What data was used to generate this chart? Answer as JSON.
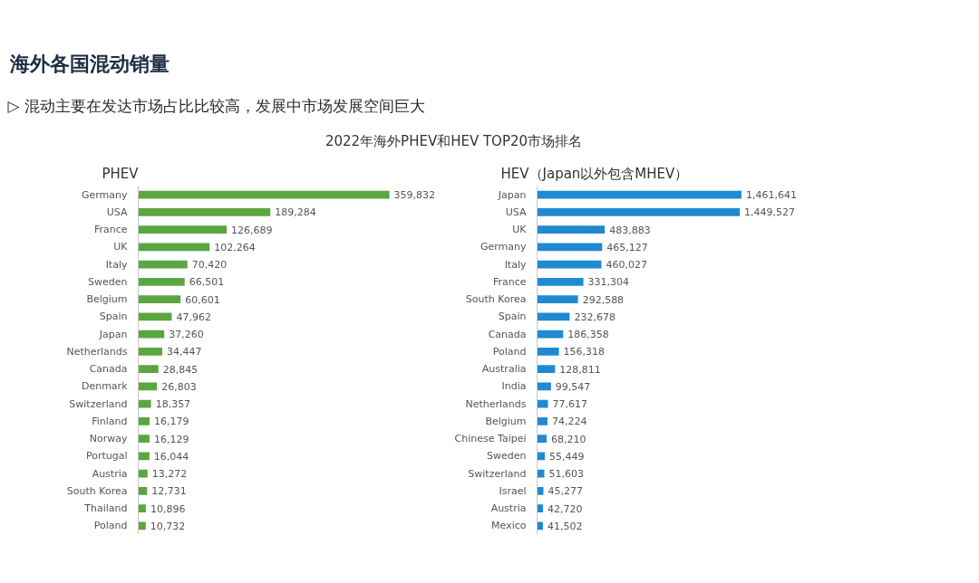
{
  "chart_data": [
    {
      "type": "bar",
      "orientation": "horizontal",
      "title": "PHEV",
      "annotations": [
        "海外各国混动销量",
        "▷ 混动主要在发达市场占比比较高，发展中市场发展空间巨大",
        "2022年海外PHEV和HEV TOP20市场排名"
      ],
      "categories": [
        "Germany",
        "USA",
        "France",
        "UK",
        "Italy",
        "Sweden",
        "Belgium",
        "Spain",
        "Japan",
        "Netherlands",
        "Canada",
        "Denmark",
        "Switzerland",
        "Finland",
        "Norway",
        "Portugal",
        "Austria",
        "South Korea",
        "Thailand",
        "Poland"
      ],
      "values": [
        359832,
        189284,
        126689,
        102264,
        70420,
        66501,
        60601,
        47962,
        37260,
        34447,
        28845,
        26803,
        18357,
        16179,
        16129,
        16044,
        13272,
        12731,
        10896,
        10732
      ],
      "value_labels": [
        "359,832",
        "189,284",
        "126,689",
        "102,264",
        "70,420",
        "66,501",
        "60,601",
        "47,962",
        "37,260",
        "34,447",
        "28,845",
        "26,803",
        "18,357",
        "16,179",
        "16,129",
        "16,044",
        "13,272",
        "12,731",
        "10,896",
        "10,732"
      ],
      "color": "#5ba640",
      "tick_labels": "y"
    },
    {
      "type": "bar",
      "orientation": "horizontal",
      "title": "HEV（Japan以外包含MHEV）",
      "categories": [
        "Japan",
        "USA",
        "UK",
        "Germany",
        "Italy",
        "France",
        "South Korea",
        "Spain",
        "Canada",
        "Poland",
        "Australia",
        "India",
        "Netherlands",
        "Belgium",
        "Chinese Taipei",
        "Sweden",
        "Switzerland",
        "Israel",
        "Austria",
        "Mexico"
      ],
      "values": [
        1461641,
        1449527,
        483883,
        465127,
        460027,
        331304,
        292588,
        232678,
        186358,
        156318,
        128811,
        99547,
        77617,
        74224,
        68210,
        55449,
        51603,
        45277,
        42720,
        41502
      ],
      "value_labels": [
        "1,461,641",
        "1,449,527",
        "483,883",
        "465,127",
        "460,027",
        "331,304",
        "292,588",
        "232,678",
        "186,358",
        "156,318",
        "128,811",
        "99,547",
        "77,617",
        "74,224",
        "68,210",
        "55,449",
        "51,603",
        "45,277",
        "42,720",
        "41,502"
      ],
      "color": "#1f8ad2",
      "tick_labels": "y"
    }
  ]
}
